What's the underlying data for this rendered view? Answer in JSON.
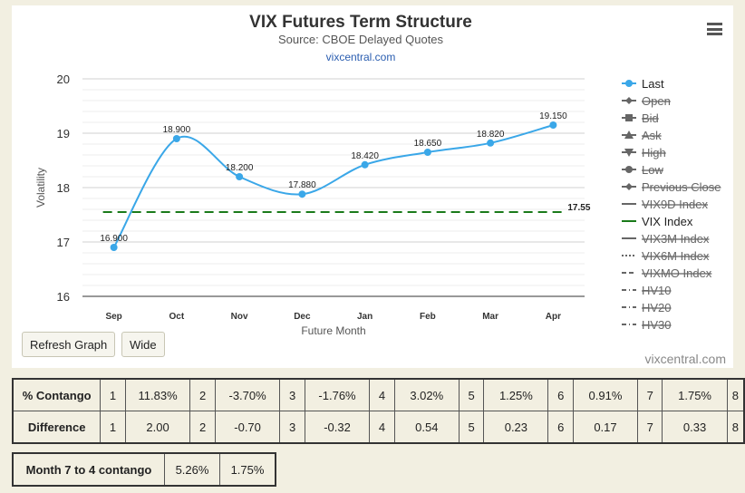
{
  "header": {
    "title": "VIX Futures Term Structure",
    "subtitle": "Source: CBOE Delayed Quotes",
    "link": "vixcentral.com"
  },
  "chart_data": {
    "type": "line",
    "categories": [
      "Sep",
      "Oct",
      "Nov",
      "Dec",
      "Jan",
      "Feb",
      "Mar",
      "Apr"
    ],
    "series": [
      {
        "name": "Last",
        "values": [
          16.9,
          18.9,
          18.2,
          17.88,
          18.42,
          18.65,
          18.82,
          19.15
        ],
        "labels": [
          "16.900",
          "18.900",
          "18.200",
          "17.880",
          "18.420",
          "18.650",
          "18.820",
          "19.150"
        ],
        "color": "#3aa7e8"
      },
      {
        "name": "VIX Index",
        "constant": 17.55,
        "label": "17.55",
        "color": "#1a7a1a",
        "dash": "dashed"
      }
    ],
    "xlabel": "Future Month",
    "ylabel": "Volatility",
    "ylim": [
      16,
      20
    ],
    "yticks": [
      "16",
      "17",
      "18",
      "19",
      "20"
    ],
    "grid": true,
    "legend_position": "right"
  },
  "legend": [
    {
      "label": "Last",
      "symbol": "circle",
      "active": true
    },
    {
      "label": "Open",
      "symbol": "diamond",
      "active": false
    },
    {
      "label": "Bid",
      "symbol": "square",
      "active": false
    },
    {
      "label": "Ask",
      "symbol": "triangle",
      "active": false
    },
    {
      "label": "High",
      "symbol": "triangle-down",
      "active": false
    },
    {
      "label": "Low",
      "symbol": "circle",
      "active": false
    },
    {
      "label": "Previous Close",
      "symbol": "diamond",
      "active": false
    },
    {
      "label": "VIX9D Index",
      "symbol": "line",
      "active": false
    },
    {
      "label": "VIX Index",
      "symbol": "line-green",
      "active": true
    },
    {
      "label": "VIX3M Index",
      "symbol": "line",
      "active": false
    },
    {
      "label": "VIX6M Index",
      "symbol": "dotted",
      "active": false
    },
    {
      "label": "VIXMO Index",
      "symbol": "dashed",
      "active": false
    },
    {
      "label": "HV10",
      "symbol": "dashdot",
      "active": false
    },
    {
      "label": "HV20",
      "symbol": "dashdot",
      "active": false
    },
    {
      "label": "HV30",
      "symbol": "dashdot",
      "active": false
    }
  ],
  "buttons": {
    "refresh": "Refresh Graph",
    "wide": "Wide"
  },
  "credit": "vixcentral.com",
  "contango_table": {
    "rows": [
      {
        "label": "% Contango",
        "cells": [
          "1",
          "11.83%",
          "2",
          "-3.70%",
          "3",
          "-1.76%",
          "4",
          "3.02%",
          "5",
          "1.25%",
          "6",
          "0.91%",
          "7",
          "1.75%",
          "8"
        ]
      },
      {
        "label": "Difference",
        "cells": [
          "1",
          "2.00",
          "2",
          "-0.70",
          "3",
          "-0.32",
          "4",
          "0.54",
          "5",
          "0.23",
          "6",
          "0.17",
          "7",
          "0.33",
          "8"
        ]
      }
    ]
  },
  "month7to4": {
    "label": "Month 7 to 4 contango",
    "values": [
      "5.26%",
      "1.75%"
    ]
  }
}
